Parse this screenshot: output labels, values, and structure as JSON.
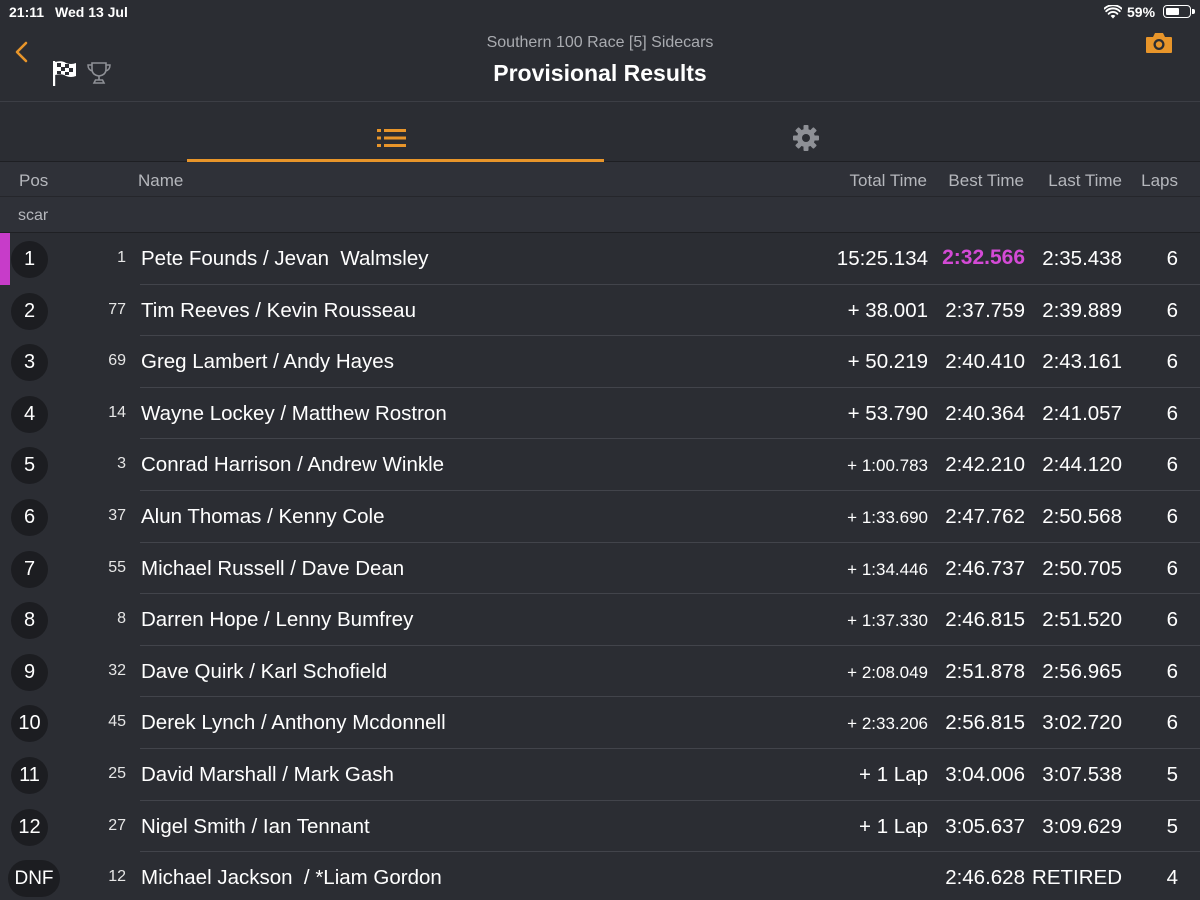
{
  "status": {
    "time": "21:11",
    "date": "Wed 13 Jul",
    "battery": "59%",
    "battery_level": 0.59
  },
  "header": {
    "subtitle": "Southern 100 Race [5] Sidecars",
    "title": "Provisional Results"
  },
  "icons": {
    "back": "chevron-left-icon",
    "flag": "checkered-flag-icon",
    "trophy": "trophy-icon",
    "camera": "camera-icon",
    "list": "list-icon",
    "settings": "gear-icon"
  },
  "colors": {
    "accent": "#e8952a",
    "fastest": "#d44ad6"
  },
  "columns": {
    "pos": "Pos",
    "name": "Name",
    "total": "Total Time",
    "best": "Best Time",
    "last": "Last Time",
    "laps": "Laps"
  },
  "class_label": "scar",
  "rows": [
    {
      "pos": "1",
      "num": "1",
      "name": "Pete Founds / Jevan  Walmsley",
      "total": "15:25.134",
      "best": "2:32.566",
      "last": "2:35.438",
      "laps": "6"
    },
    {
      "pos": "2",
      "num": "77",
      "name": "Tim Reeves / Kevin Rousseau",
      "total": "+ 38.001",
      "best": "2:37.759",
      "last": "2:39.889",
      "laps": "6"
    },
    {
      "pos": "3",
      "num": "69",
      "name": "Greg Lambert / Andy Hayes",
      "total": "+ 50.219",
      "best": "2:40.410",
      "last": "2:43.161",
      "laps": "6"
    },
    {
      "pos": "4",
      "num": "14",
      "name": "Wayne Lockey / Matthew Rostron",
      "total": "+ 53.790",
      "best": "2:40.364",
      "last": "2:41.057",
      "laps": "6"
    },
    {
      "pos": "5",
      "num": "3",
      "name": "Conrad Harrison / Andrew Winkle",
      "total": "+ 1:00.783",
      "best": "2:42.210",
      "last": "2:44.120",
      "laps": "6"
    },
    {
      "pos": "6",
      "num": "37",
      "name": "Alun Thomas / Kenny Cole",
      "total": "+ 1:33.690",
      "best": "2:47.762",
      "last": "2:50.568",
      "laps": "6"
    },
    {
      "pos": "7",
      "num": "55",
      "name": "Michael Russell / Dave Dean",
      "total": "+ 1:34.446",
      "best": "2:46.737",
      "last": "2:50.705",
      "laps": "6"
    },
    {
      "pos": "8",
      "num": "8",
      "name": "Darren Hope / Lenny Bumfrey",
      "total": "+ 1:37.330",
      "best": "2:46.815",
      "last": "2:51.520",
      "laps": "6"
    },
    {
      "pos": "9",
      "num": "32",
      "name": "Dave Quirk / Karl Schofield",
      "total": "+ 2:08.049",
      "best": "2:51.878",
      "last": "2:56.965",
      "laps": "6"
    },
    {
      "pos": "10",
      "num": "45",
      "name": "Derek Lynch / Anthony Mcdonnell",
      "total": "+ 2:33.206",
      "best": "2:56.815",
      "last": "3:02.720",
      "laps": "6"
    },
    {
      "pos": "11",
      "num": "25",
      "name": "David Marshall / Mark Gash",
      "total": "+ 1 Lap",
      "best": "3:04.006",
      "last": "3:07.538",
      "laps": "5"
    },
    {
      "pos": "12",
      "num": "27",
      "name": "Nigel Smith / Ian Tennant",
      "total": "+ 1 Lap",
      "best": "3:05.637",
      "last": "3:09.629",
      "laps": "5"
    },
    {
      "pos": "DNF",
      "num": "12",
      "name": "Michael Jackson  / *Liam Gordon",
      "total": "",
      "best": "2:46.628",
      "last": "RETIRED",
      "laps": "4"
    }
  ]
}
